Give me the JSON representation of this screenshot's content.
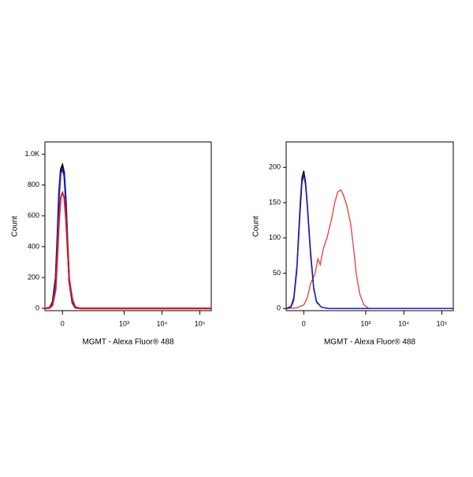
{
  "chart_data": [
    {
      "type": "line",
      "x_label": "MGMT - Alexa Fluor® 488",
      "y_label": "Count",
      "xscale": "biexponential",
      "xlim": [
        -60,
        200000
      ],
      "ylim": [
        -15,
        1080
      ],
      "xticks": [
        0,
        {
          "value": 1000,
          "label": "10³"
        },
        {
          "value": 10000,
          "label": "10⁴"
        },
        {
          "value": 100000,
          "label": "10⁵"
        }
      ],
      "yticks": [
        0,
        200,
        400,
        600,
        800,
        {
          "value": 1000,
          "label": "1.0K"
        }
      ],
      "series": [
        {
          "color": "#000000",
          "x": [
            -60,
            -40,
            -30,
            -20,
            -15,
            -10,
            -5,
            0,
            5,
            10,
            15,
            20,
            30,
            40,
            60,
            100,
            1000,
            10000,
            200000
          ],
          "values": [
            0,
            5,
            40,
            200,
            450,
            750,
            900,
            930,
            880,
            700,
            420,
            180,
            40,
            5,
            0,
            0,
            0,
            0,
            0
          ]
        },
        {
          "color": "#1f1fd0",
          "x": [
            -60,
            -40,
            -30,
            -20,
            -15,
            -10,
            -5,
            0,
            5,
            10,
            15,
            20,
            30,
            40,
            60,
            100,
            1000,
            10000,
            200000
          ],
          "values": [
            0,
            3,
            30,
            180,
            420,
            720,
            880,
            900,
            860,
            680,
            400,
            170,
            35,
            4,
            0,
            0,
            0,
            0,
            0
          ]
        },
        {
          "color": "#e01818",
          "x": [
            -60,
            -40,
            -30,
            -20,
            -15,
            -10,
            -5,
            0,
            5,
            10,
            15,
            20,
            30,
            40,
            60,
            100,
            1000,
            10000,
            200000
          ],
          "values": [
            0,
            2,
            20,
            120,
            320,
            560,
            720,
            750,
            720,
            580,
            380,
            190,
            60,
            10,
            0,
            0,
            0,
            0,
            0
          ]
        }
      ]
    },
    {
      "type": "line",
      "x_label": "MGMT - Alexa Fluor® 488",
      "y_label": "Count",
      "xscale": "biexponential",
      "xlim": [
        -60,
        200000
      ],
      "ylim": [
        -3,
        236
      ],
      "xticks": [
        0,
        {
          "value": 1000,
          "label": "10³"
        },
        {
          "value": 10000,
          "label": "10⁴"
        },
        {
          "value": 100000,
          "label": "10⁵"
        }
      ],
      "yticks": [
        0,
        50,
        100,
        150,
        200
      ],
      "series": [
        {
          "color": "#e84848",
          "x": [
            -60,
            -20,
            0,
            10,
            20,
            35,
            45,
            55,
            70,
            90,
            120,
            150,
            180,
            220,
            260,
            320,
            400,
            480,
            560,
            700,
            900,
            1200,
            5000,
            200000
          ],
          "values": [
            0,
            1,
            5,
            15,
            35,
            50,
            70,
            62,
            85,
            100,
            125,
            150,
            165,
            168,
            160,
            145,
            120,
            85,
            50,
            20,
            5,
            0,
            0,
            0
          ]
        },
        {
          "color": "#000000",
          "x": [
            -60,
            -40,
            -30,
            -20,
            -10,
            -5,
            0,
            5,
            10,
            20,
            30,
            40,
            60,
            100,
            200000
          ],
          "values": [
            0,
            3,
            15,
            60,
            150,
            185,
            195,
            180,
            150,
            80,
            30,
            10,
            2,
            0,
            0
          ]
        },
        {
          "color": "#1f1fd0",
          "x": [
            -60,
            -40,
            -30,
            -20,
            -10,
            -5,
            0,
            5,
            10,
            20,
            30,
            40,
            60,
            100,
            200000
          ],
          "values": [
            0,
            2,
            12,
            55,
            140,
            178,
            190,
            175,
            145,
            75,
            28,
            9,
            2,
            0,
            0
          ]
        }
      ]
    }
  ]
}
